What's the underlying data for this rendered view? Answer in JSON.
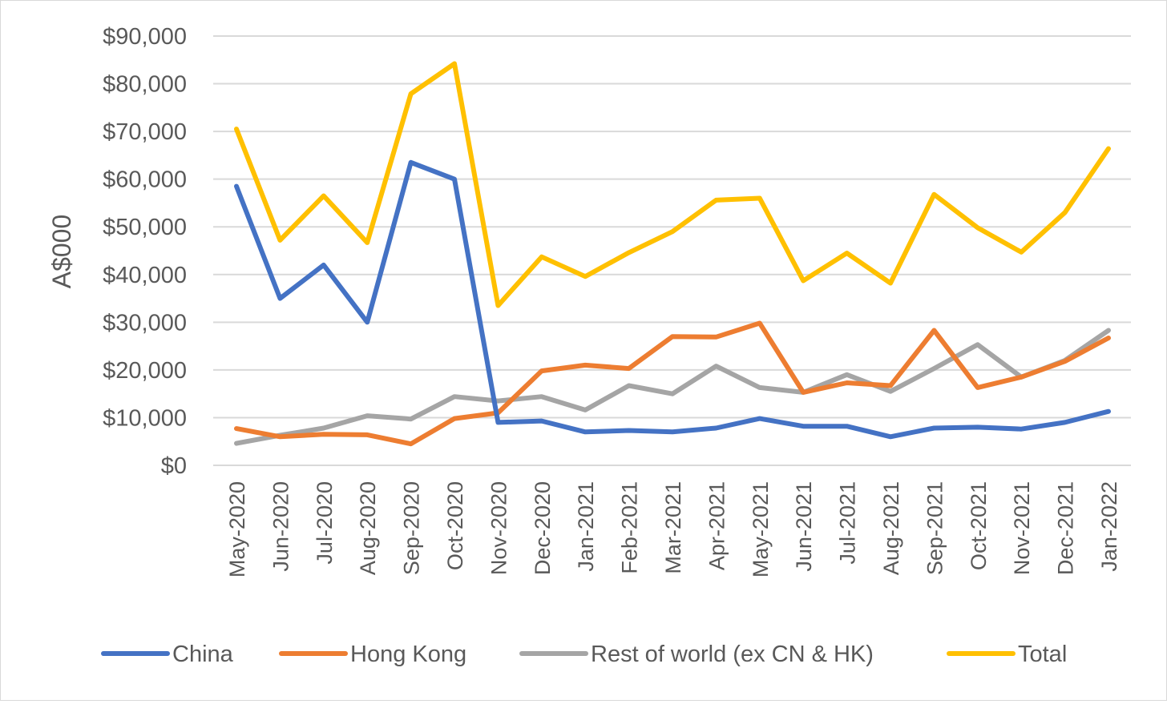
{
  "chart_data": {
    "type": "line",
    "title": "",
    "xlabel": "",
    "ylabel": "A$000",
    "ylim": [
      0,
      90000
    ],
    "yticks": [
      "$0",
      "$10,000",
      "$20,000",
      "$30,000",
      "$40,000",
      "$50,000",
      "$60,000",
      "$70,000",
      "$80,000",
      "$90,000"
    ],
    "ytick_values": [
      0,
      10000,
      20000,
      30000,
      40000,
      50000,
      60000,
      70000,
      80000,
      90000
    ],
    "grid": true,
    "legend_position": "bottom",
    "categories": [
      "May-2020",
      "Jun-2020",
      "Jul-2020",
      "Aug-2020",
      "Sep-2020",
      "Oct-2020",
      "Nov-2020",
      "Dec-2020",
      "Jan-2021",
      "Feb-2021",
      "Mar-2021",
      "Apr-2021",
      "May-2021",
      "Jun-2021",
      "Jul-2021",
      "Aug-2021",
      "Sep-2021",
      "Oct-2021",
      "Nov-2021",
      "Dec-2021",
      "Jan-2022"
    ],
    "series": [
      {
        "name": "China",
        "color": "#4472C4",
        "values": [
          58500,
          35000,
          42000,
          30000,
          63500,
          60000,
          9000,
          9300,
          7000,
          7300,
          7000,
          7800,
          9800,
          8200,
          8200,
          6000,
          7800,
          8000,
          7600,
          9000,
          11300
        ]
      },
      {
        "name": "Hong Kong",
        "color": "#ED7D31",
        "values": [
          7700,
          6000,
          6500,
          6400,
          4500,
          9800,
          11000,
          19800,
          21000,
          20300,
          27000,
          26900,
          29800,
          15300,
          17300,
          16700,
          28300,
          16300,
          18500,
          21800,
          26700
        ]
      },
      {
        "name": "Rest of world (ex CN & HK)",
        "color": "#A5A5A5",
        "values": [
          4600,
          6300,
          7800,
          10400,
          9700,
          14400,
          13500,
          14400,
          11600,
          16700,
          15000,
          20800,
          16300,
          15300,
          19000,
          15500,
          20300,
          25300,
          18500,
          22000,
          28300
        ]
      },
      {
        "name": "Total",
        "color": "#FFC000",
        "values": [
          70500,
          47200,
          56500,
          46700,
          77900,
          84200,
          33500,
          43700,
          39600,
          44600,
          49000,
          55600,
          56000,
          38700,
          44500,
          38200,
          56800,
          49800,
          44700,
          53000,
          66400
        ]
      }
    ]
  }
}
